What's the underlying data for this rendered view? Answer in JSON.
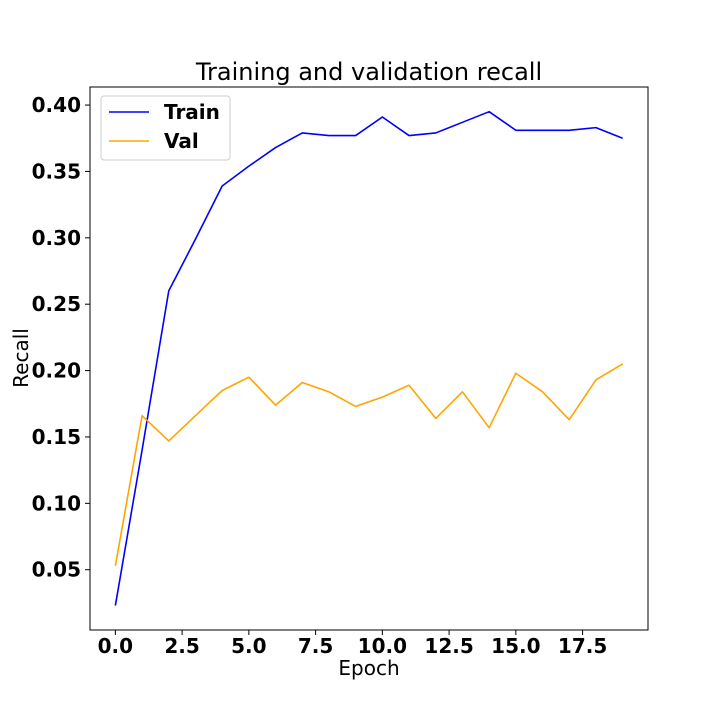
{
  "chart_data": {
    "type": "line",
    "title": "Training and validation recall",
    "xlabel": "Epoch",
    "ylabel": "Recall",
    "xlim": [
      -0.95,
      19.95
    ],
    "ylim": [
      0.0046,
      0.4136
    ],
    "xticks": [
      0.0,
      2.5,
      5.0,
      7.5,
      10.0,
      12.5,
      15.0,
      17.5
    ],
    "xtick_labels": [
      "0.0",
      "2.5",
      "5.0",
      "7.5",
      "10.0",
      "12.5",
      "15.0",
      "17.5"
    ],
    "yticks": [
      0.05,
      0.1,
      0.15,
      0.2,
      0.25,
      0.3,
      0.35,
      0.4
    ],
    "ytick_labels": [
      "0.05",
      "0.10",
      "0.15",
      "0.20",
      "0.25",
      "0.30",
      "0.35",
      "0.40"
    ],
    "grid": false,
    "legend_position": "top-left",
    "x": [
      0,
      1,
      2,
      3,
      4,
      5,
      6,
      7,
      8,
      9,
      10,
      11,
      12,
      13,
      14,
      15,
      16,
      17,
      18,
      19
    ],
    "series": [
      {
        "name": "Train",
        "color": "#0000ff",
        "values": [
          0.023,
          0.14,
          0.26,
          0.299,
          0.339,
          0.354,
          0.368,
          0.379,
          0.377,
          0.377,
          0.391,
          0.377,
          0.379,
          0.387,
          0.395,
          0.381,
          0.381,
          0.381,
          0.383,
          0.375
        ]
      },
      {
        "name": "Val",
        "color": "#ffa500",
        "values": [
          0.053,
          0.166,
          0.147,
          0.166,
          0.185,
          0.195,
          0.174,
          0.191,
          0.184,
          0.173,
          0.18,
          0.189,
          0.164,
          0.184,
          0.157,
          0.198,
          0.184,
          0.163,
          0.193,
          0.205
        ]
      }
    ]
  }
}
